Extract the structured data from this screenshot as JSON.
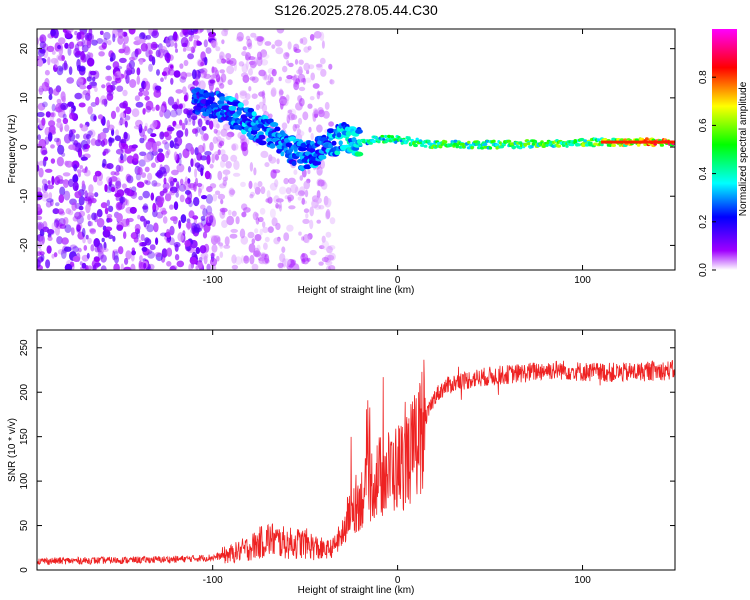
{
  "title": "S126.2025.278.05.44.C30",
  "chart_data": [
    {
      "type": "heatmap",
      "name": "spectrogram",
      "xlabel": "Height of straight line (km)",
      "ylabel": "Frequency (Hz)",
      "xlim": [
        -195,
        150
      ],
      "ylim": [
        -25,
        24
      ],
      "xticks": [
        -100,
        0,
        100
      ],
      "yticks": [
        -20,
        -10,
        0,
        10,
        20
      ],
      "colorbar": {
        "label": "Normalized spectral amplitude",
        "range": [
          0,
          1
        ],
        "ticks": [
          0.0,
          0.2,
          0.4,
          0.6,
          0.8
        ],
        "colors": [
          "#ffffff",
          "#8b00ff",
          "#0000ff",
          "#00ffff",
          "#00ff00",
          "#ffff00",
          "#ff0000",
          "#ff00ff"
        ]
      },
      "ridge": [
        {
          "x": -100,
          "y": 9,
          "amp": 0.25
        },
        {
          "x": -90,
          "y": 7,
          "amp": 0.3
        },
        {
          "x": -80,
          "y": 5,
          "amp": 0.3
        },
        {
          "x": -70,
          "y": 3,
          "amp": 0.3
        },
        {
          "x": -60,
          "y": 0,
          "amp": 0.3
        },
        {
          "x": -50,
          "y": -2,
          "amp": 0.3
        },
        {
          "x": -40,
          "y": 0,
          "amp": 0.3
        },
        {
          "x": -30,
          "y": 2,
          "amp": 0.35
        },
        {
          "x": -20,
          "y": 1,
          "amp": 0.4
        },
        {
          "x": -10,
          "y": 1.5,
          "amp": 0.45
        },
        {
          "x": 0,
          "y": 1.5,
          "amp": 0.45
        },
        {
          "x": 20,
          "y": 0.5,
          "amp": 0.5
        },
        {
          "x": 60,
          "y": 0.5,
          "amp": 0.5
        },
        {
          "x": 110,
          "y": 1,
          "amp": 0.55
        },
        {
          "x": 150,
          "y": 1,
          "amp": 0.85
        }
      ]
    },
    {
      "type": "line",
      "name": "snr",
      "xlabel": "Height of straight line (km)",
      "ylabel": "SNR (10 * v/v)",
      "xlim": [
        -195,
        150
      ],
      "ylim": [
        0,
        270
      ],
      "xticks": [
        -100,
        0,
        100
      ],
      "yticks": [
        0,
        50,
        100,
        150,
        200,
        250
      ],
      "color": "#ee2222",
      "series": [
        {
          "name": "SNR",
          "x": [
            -195,
            -150,
            -120,
            -100,
            -90,
            -80,
            -70,
            -60,
            -50,
            -40,
            -35,
            -30,
            -25,
            -20,
            -15,
            -10,
            -5,
            0,
            5,
            10,
            15,
            20,
            25,
            30,
            40,
            50,
            60,
            70,
            80,
            90,
            100,
            120,
            150
          ],
          "y": [
            10,
            11,
            12,
            14,
            18,
            25,
            35,
            30,
            30,
            22,
            25,
            40,
            70,
            80,
            95,
            105,
            110,
            115,
            125,
            140,
            170,
            195,
            205,
            210,
            215,
            218,
            220,
            222,
            225,
            225,
            223,
            222,
            225
          ]
        }
      ]
    }
  ]
}
